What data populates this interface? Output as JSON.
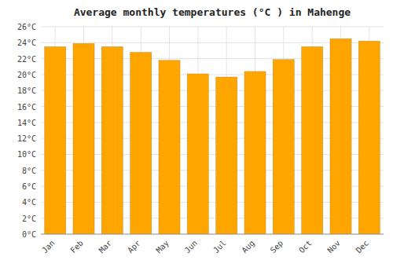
{
  "chart_data": {
    "type": "bar",
    "title": "Average monthly temperatures (°C ) in Mahenge",
    "categories": [
      "Jan",
      "Feb",
      "Mar",
      "Apr",
      "May",
      "Jun",
      "Jul",
      "Aug",
      "Sep",
      "Oct",
      "Nov",
      "Dec"
    ],
    "values": [
      23.5,
      23.9,
      23.5,
      22.8,
      21.8,
      20.1,
      19.7,
      20.4,
      21.9,
      23.5,
      24.5,
      24.2
    ],
    "color": "#FFA500",
    "ylim": [
      0,
      26
    ],
    "yticks": [
      {
        "value": 0,
        "label": "0°C"
      },
      {
        "value": 2,
        "label": "2°C"
      },
      {
        "value": 4,
        "label": "4°C"
      },
      {
        "value": 6,
        "label": "6°C"
      },
      {
        "value": 8,
        "label": "8°C"
      },
      {
        "value": 10,
        "label": "10°C"
      },
      {
        "value": 12,
        "label": "12°C"
      },
      {
        "value": 14,
        "label": "14°C"
      },
      {
        "value": 16,
        "label": "16°C"
      },
      {
        "value": 18,
        "label": "18°C"
      },
      {
        "value": 20,
        "label": "20°C"
      },
      {
        "value": 22,
        "label": "22°C"
      },
      {
        "value": 24,
        "label": "24°C"
      },
      {
        "value": 26,
        "label": "26°C"
      }
    ],
    "grid": true
  }
}
